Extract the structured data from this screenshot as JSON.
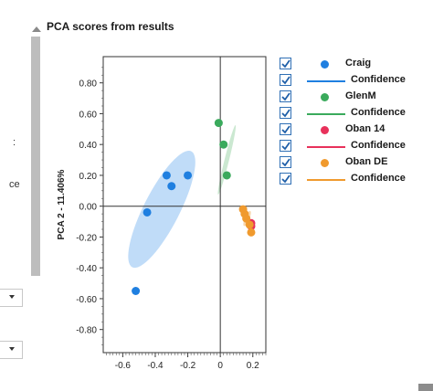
{
  "panel": {
    "title": "PCA scores from results"
  },
  "left_fragments": [
    ":",
    "ce"
  ],
  "legend": [
    {
      "kind": "series",
      "label": "Craig",
      "color": "#1f7fe0",
      "checked": true
    },
    {
      "kind": "confidence",
      "label": "Confidence",
      "color": "#1f7fe0",
      "checked": true
    },
    {
      "kind": "series",
      "label": "GlenM",
      "color": "#3aaa5c",
      "checked": true
    },
    {
      "kind": "confidence",
      "label": "Confidence",
      "color": "#3aaa5c",
      "checked": true
    },
    {
      "kind": "series",
      "label": "Oban 14",
      "color": "#e8315b",
      "checked": true
    },
    {
      "kind": "confidence",
      "label": "Confidence",
      "color": "#e8315b",
      "checked": true
    },
    {
      "kind": "series",
      "label": "Oban DE",
      "color": "#f09a2e",
      "checked": true
    },
    {
      "kind": "confidence",
      "label": "Confidence",
      "color": "#f09a2e",
      "checked": true
    }
  ],
  "chart_data": {
    "type": "scatter",
    "title": "",
    "xlabel": "",
    "ylabel": "PCA 2 - 11.406%",
    "xlim": [
      -0.72,
      0.28
    ],
    "ylim": [
      -0.95,
      0.97
    ],
    "xticks": [
      -0.6,
      -0.4,
      -0.2,
      0,
      0.2
    ],
    "xtick_labels": [
      "-0.6",
      "-0.4",
      "-0.2",
      "0",
      "0.2"
    ],
    "yticks": [
      0.8,
      0.6,
      0.4,
      0.2,
      0.0,
      -0.2,
      -0.4,
      -0.6,
      -0.8
    ],
    "ytick_labels": [
      "0.80",
      "0.60",
      "0.40",
      "0.20",
      "0.00",
      "-0.20",
      "-0.40",
      "-0.60",
      "-0.80"
    ],
    "grid": false,
    "legend_position": "right",
    "series": [
      {
        "name": "Craig",
        "color": "#1f7fe0",
        "points": [
          [
            -0.33,
            0.2
          ],
          [
            -0.3,
            0.13
          ],
          [
            -0.2,
            0.2
          ],
          [
            -0.45,
            -0.04
          ],
          [
            -0.52,
            -0.55
          ]
        ],
        "confidence": {
          "color": "#b9d8f7",
          "cx": -0.36,
          "cy": -0.02,
          "rx": 0.8,
          "ry": 0.11,
          "angle_deg": -63
        }
      },
      {
        "name": "GlenM",
        "color": "#3aaa5c",
        "points": [
          [
            -0.01,
            0.54
          ],
          [
            0.02,
            0.4
          ],
          [
            0.04,
            0.2
          ]
        ],
        "confidence": {
          "color": "#c5e6cc",
          "cx": 0.04,
          "cy": 0.3,
          "rx": 0.44,
          "ry": 0.01,
          "angle_deg": -76
        }
      },
      {
        "name": "Oban 14",
        "color": "#e8315b",
        "points": [
          [
            0.19,
            -0.11
          ],
          [
            0.19,
            -0.13
          ]
        ],
        "confidence": null
      },
      {
        "name": "Oban DE",
        "color": "#f09a2e",
        "points": [
          [
            0.14,
            -0.02
          ],
          [
            0.15,
            -0.05
          ],
          [
            0.16,
            -0.08
          ],
          [
            0.18,
            -0.12
          ],
          [
            0.19,
            -0.17
          ]
        ],
        "confidence": {
          "color": "#f7d3a4",
          "cx": 0.165,
          "cy": -0.08,
          "rx": 0.1,
          "ry": 0.012,
          "angle_deg": -67
        }
      }
    ]
  }
}
